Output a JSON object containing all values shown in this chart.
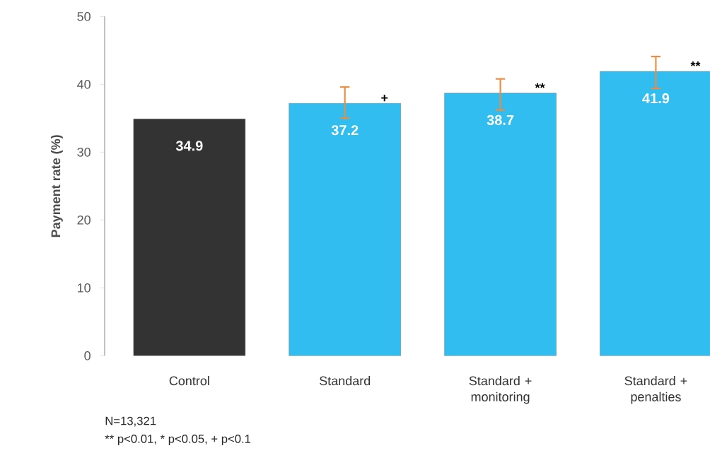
{
  "chart_data": {
    "type": "bar",
    "ylabel": "Payment rate (%)",
    "categories": [
      "Control",
      "Standard",
      "Standard + monitoring",
      "Standard + penalties"
    ],
    "values": [
      34.9,
      37.2,
      38.7,
      41.9
    ],
    "colors": [
      "#333333",
      "#31bdf0",
      "#31bdf0",
      "#31bdf0"
    ],
    "errors": [
      null,
      [
        35.0,
        39.6
      ],
      [
        36.2,
        40.8
      ],
      [
        39.4,
        44.1
      ]
    ],
    "data_labels": true,
    "ylim": [
      0,
      50
    ],
    "yticks": [
      0,
      10,
      20,
      30,
      40,
      50
    ],
    "grid": false,
    "annotations": [
      {
        "text": "+",
        "x": "Standard",
        "y": 37.2
      },
      {
        "text": "**",
        "x": "Standard + monitoring",
        "y": 38.7
      },
      {
        "text": "**",
        "x": "Standard + penalties",
        "y": 41.9
      },
      "N=13,321",
      "** p<0.01, * p<0.05, + p<0.1"
    ]
  }
}
